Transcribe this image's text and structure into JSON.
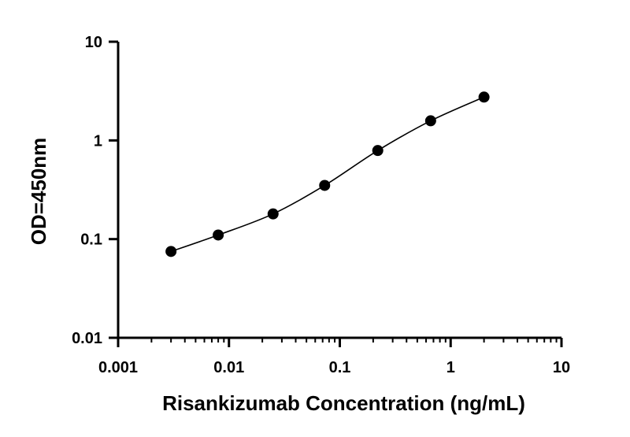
{
  "chart_data": {
    "type": "scatter",
    "title": "",
    "xlabel": "Risankizumab Concentration (ng/mL)",
    "ylabel": "OD=450nm",
    "xscale": "log",
    "yscale": "log",
    "xlim": [
      0.001,
      10
    ],
    "ylim": [
      0.01,
      10
    ],
    "x_ticks": [
      "0.001",
      "0.01",
      "0.1",
      "1",
      "10"
    ],
    "y_ticks": [
      "0.01",
      "0.1",
      "1",
      "10"
    ],
    "grid": false,
    "legend": "none",
    "fit": "sigmoidal curve through points",
    "series": [
      {
        "points": [
          {
            "x": 0.003,
            "y": 0.075
          },
          {
            "x": 0.008,
            "y": 0.11
          },
          {
            "x": 0.025,
            "y": 0.18
          },
          {
            "x": 0.073,
            "y": 0.35
          },
          {
            "x": 0.22,
            "y": 0.79
          },
          {
            "x": 0.66,
            "y": 1.58
          },
          {
            "x": 2.0,
            "y": 2.75
          }
        ]
      }
    ]
  }
}
